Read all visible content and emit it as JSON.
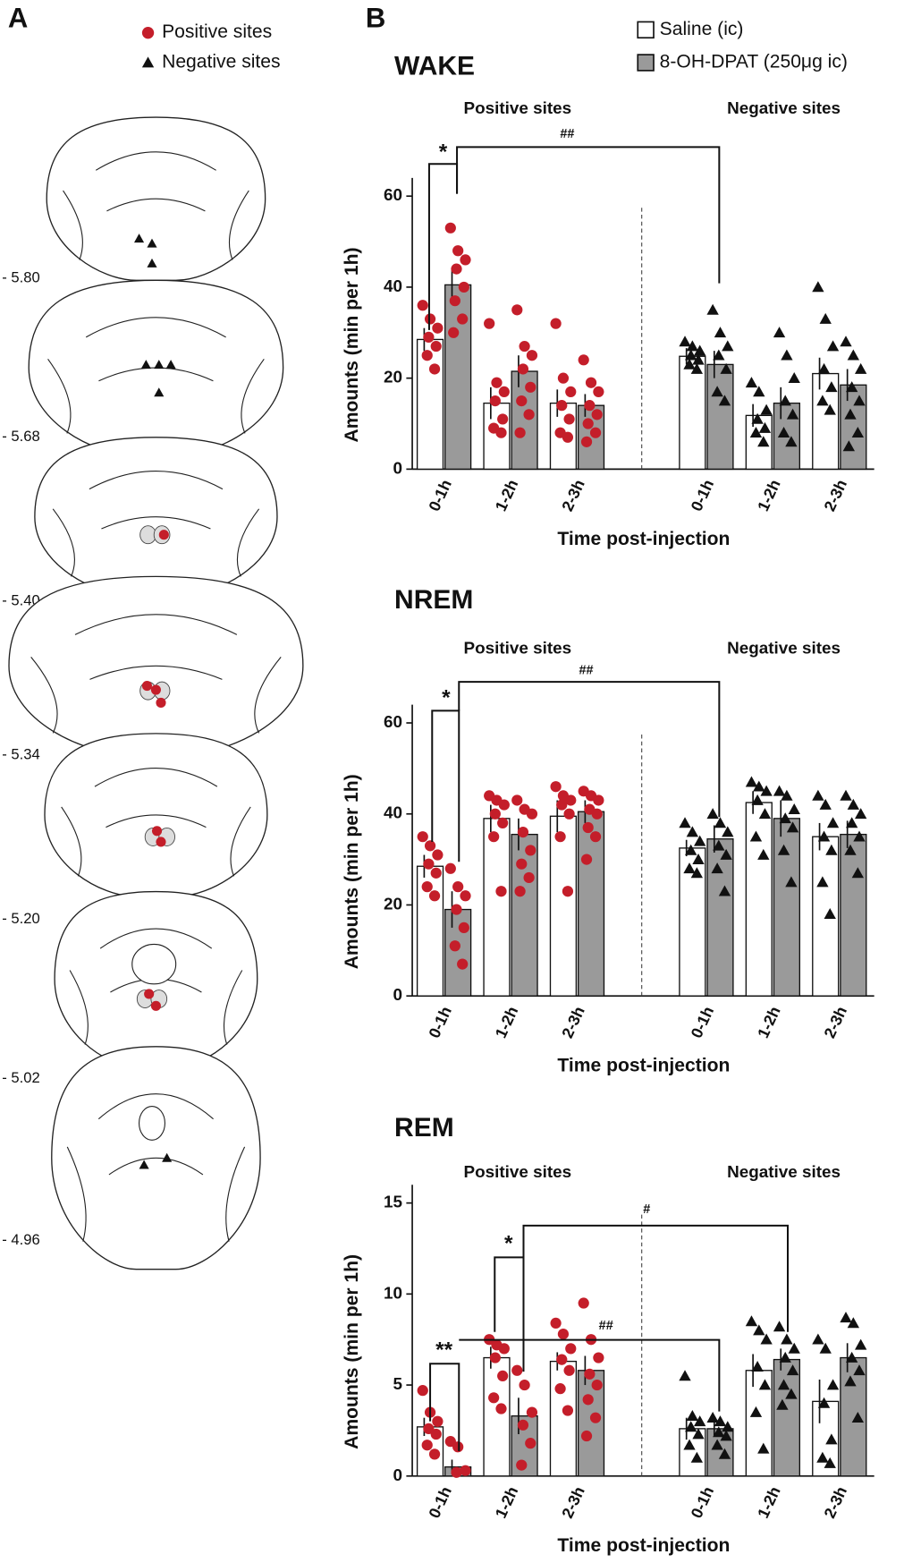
{
  "panel_a": {
    "label": "A",
    "legend": [
      "Positive sites",
      "Negative sites"
    ],
    "sections": [
      "- 5.80",
      "- 5.68",
      "- 5.40",
      "- 5.34",
      "- 5.20",
      "- 5.02",
      "- 4.96"
    ]
  },
  "panel_b": {
    "label": "B"
  },
  "chart_data": [
    {
      "type": "bar",
      "title": "WAKE",
      "group_labels": [
        "Positive sites",
        "Negative sites"
      ],
      "categories": [
        "0-1h",
        "1-2h",
        "2-3h",
        "0-1h",
        "1-2h",
        "2-3h"
      ],
      "x_label": "Time post-injection",
      "y_label": "Amounts (min per 1h)",
      "ylim": [
        0,
        64
      ],
      "yticks": [
        0,
        20,
        40,
        60
      ],
      "marker_colors": [
        "#c41e2a",
        "#111111"
      ],
      "annotations": [
        "*",
        "##"
      ],
      "series": [
        {
          "name": "Saline (ic)",
          "color": "#ffffff",
          "values": [
            28.5,
            14.5,
            14.5,
            24.8,
            11.8,
            21
          ],
          "errors": [
            2.5,
            3.5,
            3,
            1.8,
            2.5,
            3.5
          ],
          "points": [
            [
              36,
              33,
              31,
              29,
              27,
              25,
              22
            ],
            [
              32,
              19,
              17,
              15,
              11,
              9,
              8
            ],
            [
              32,
              20,
              17,
              14,
              11,
              8,
              7
            ],
            [
              28,
              27,
              26,
              25,
              24,
              23,
              22
            ],
            [
              19,
              17,
              13,
              11,
              9,
              8,
              6
            ],
            [
              40,
              33,
              27,
              22,
              18,
              15,
              13
            ]
          ]
        },
        {
          "name": "8-OH-DPAT (250μg ic)",
          "color": "#9a9a9a",
          "values": [
            40.5,
            21.5,
            14,
            23,
            14.5,
            18.5
          ],
          "errors": [
            3.5,
            3.5,
            2.5,
            3,
            3.5,
            3.5
          ],
          "points": [
            [
              53,
              48,
              46,
              44,
              40,
              37,
              33,
              30
            ],
            [
              35,
              27,
              25,
              22,
              18,
              15,
              12,
              8
            ],
            [
              24,
              19,
              17,
              14,
              12,
              10,
              8,
              6
            ],
            [
              35,
              30,
              27,
              25,
              22,
              17,
              15
            ],
            [
              30,
              25,
              20,
              15,
              12,
              8,
              6
            ],
            [
              28,
              25,
              22,
              18,
              15,
              12,
              8,
              5
            ]
          ]
        }
      ]
    },
    {
      "type": "bar",
      "title": "NREM",
      "group_labels": [
        "Positive sites",
        "Negative sites"
      ],
      "categories": [
        "0-1h",
        "1-2h",
        "2-3h",
        "0-1h",
        "1-2h",
        "2-3h"
      ],
      "x_label": "Time post-injection",
      "y_label": "Amounts (min per 1h)",
      "ylim": [
        0,
        64
      ],
      "yticks": [
        0,
        20,
        40,
        60
      ],
      "marker_colors": [
        "#c41e2a",
        "#111111"
      ],
      "annotations": [
        "*",
        "##"
      ],
      "series": [
        {
          "color": "#ffffff",
          "values": [
            28.5,
            39,
            39.5,
            32.5,
            42.5,
            35
          ],
          "errors": [
            2.5,
            3,
            3.5,
            1.8,
            2.5,
            3
          ],
          "points": [
            [
              35,
              33,
              31,
              29,
              27,
              24,
              22
            ],
            [
              44,
              43,
              42,
              40,
              38,
              35,
              23
            ],
            [
              46,
              44,
              43,
              42,
              40,
              35,
              23
            ],
            [
              38,
              36,
              34,
              32,
              30,
              28,
              27
            ],
            [
              47,
              46,
              45,
              43,
              40,
              35,
              31
            ],
            [
              44,
              42,
              38,
              35,
              32,
              25,
              18
            ]
          ]
        },
        {
          "color": "#9a9a9a",
          "values": [
            19,
            35.5,
            40.5,
            34.5,
            39,
            35.5
          ],
          "errors": [
            4,
            3.5,
            2.5,
            3,
            4,
            3
          ],
          "points": [
            [
              28,
              24,
              22,
              19,
              15,
              11,
              7
            ],
            [
              43,
              41,
              40,
              36,
              32,
              29,
              26,
              23
            ],
            [
              45,
              44,
              43,
              41,
              40,
              37,
              35,
              30
            ],
            [
              40,
              38,
              36,
              33,
              31,
              28,
              23
            ],
            [
              45,
              44,
              41,
              39,
              37,
              32,
              25
            ],
            [
              44,
              42,
              40,
              38,
              35,
              32,
              27
            ]
          ]
        }
      ]
    },
    {
      "type": "bar",
      "title": "REM",
      "group_labels": [
        "Positive sites",
        "Negative sites"
      ],
      "categories": [
        "0-1h",
        "1-2h",
        "2-3h",
        "0-1h",
        "1-2h",
        "2-3h"
      ],
      "x_label": "Time post-injection",
      "y_label": "Amounts (min per 1h)",
      "ylim": [
        0,
        16
      ],
      "yticks": [
        0,
        5,
        10,
        15
      ],
      "marker_colors": [
        "#c41e2a",
        "#111111"
      ],
      "annotations": [
        "#",
        "*",
        "##",
        "**"
      ],
      "series": [
        {
          "color": "#ffffff",
          "values": [
            2.7,
            6.5,
            6.3,
            2.6,
            5.8,
            4.1
          ],
          "errors": [
            0.5,
            0.6,
            0.5,
            0.6,
            0.9,
            1.2
          ],
          "points": [
            [
              4.7,
              3.5,
              3,
              2.6,
              2.3,
              1.7,
              1.2
            ],
            [
              7.5,
              7.2,
              7,
              6.5,
              5.5,
              4.3,
              3.7
            ],
            [
              8.4,
              7.8,
              7,
              6.4,
              5.8,
              4.8,
              3.6
            ],
            [
              5.5,
              3.3,
              3,
              2.7,
              2.3,
              1.7,
              1
            ],
            [
              8.5,
              8,
              7.5,
              6,
              5,
              3.5,
              1.5
            ],
            [
              7.5,
              7,
              5,
              4,
              2,
              1,
              0.7
            ]
          ]
        },
        {
          "color": "#9a9a9a",
          "values": [
            0.5,
            3.3,
            5.8,
            2.6,
            6.4,
            6.5
          ],
          "errors": [
            0.4,
            1.0,
            0.8,
            0.4,
            0.6,
            0.8
          ],
          "points": [
            [
              1.9,
              1.6,
              0.3,
              0.2
            ],
            [
              5.8,
              5,
              3.5,
              2.8,
              1.8,
              0.6
            ],
            [
              9.5,
              7.5,
              6.5,
              5.6,
              5,
              4.2,
              3.2,
              2.2
            ],
            [
              3.2,
              3,
              2.7,
              2.4,
              2.2,
              1.7,
              1.2
            ],
            [
              8.2,
              7.5,
              7,
              6.5,
              5.8,
              5,
              4.5,
              3.9
            ],
            [
              8.7,
              8.4,
              7.2,
              6.5,
              5.8,
              5.2,
              3.2
            ]
          ]
        }
      ]
    }
  ]
}
